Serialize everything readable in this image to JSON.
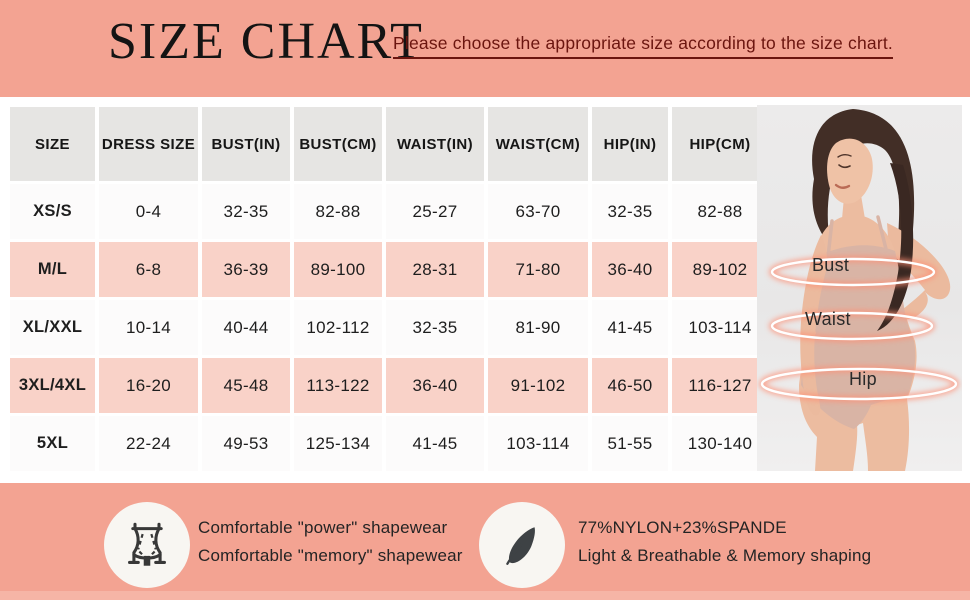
{
  "title": "SIZE CHART",
  "subtitle": "Please choose the appropriate size according to the size chart.",
  "table": {
    "headers": [
      "SIZE",
      "DRESS SIZE",
      "BUST(IN)",
      "BUST(CM)",
      "WAIST(IN)",
      "WAIST(CM)",
      "HIP(IN)",
      "HIP(CM)"
    ],
    "rows": [
      {
        "cells": [
          "XS/S",
          "0-4",
          "32-35",
          "82-88",
          "25-27",
          "63-70",
          "32-35",
          "82-88"
        ]
      },
      {
        "cells": [
          "M/L",
          "6-8",
          "36-39",
          "89-100",
          "28-31",
          "71-80",
          "36-40",
          "89-102"
        ]
      },
      {
        "cells": [
          "XL/XXL",
          "10-14",
          "40-44",
          "102-112",
          "32-35",
          "81-90",
          "41-45",
          "103-114"
        ]
      },
      {
        "cells": [
          "3XL/4XL",
          "16-20",
          "45-48",
          "113-122",
          "36-40",
          "91-102",
          "46-50",
          "116-127"
        ]
      },
      {
        "cells": [
          "5XL",
          "22-24",
          "49-53",
          "125-134",
          "41-45",
          "103-114",
          "51-55",
          "130-140"
        ]
      }
    ]
  },
  "figure": {
    "bust_label": "Bust",
    "waist_label": "Waist",
    "hip_label": "Hip"
  },
  "features": [
    {
      "icon": "shapewear-torso-icon",
      "line1": "Comfortable \"power\" shapewear",
      "line2": "Comfortable \"memory\" shapewear"
    },
    {
      "icon": "feather-icon",
      "line1": "77%NYLON+23%SPANDE",
      "line2": "Light & Breathable & Memory shaping"
    }
  ],
  "colors": {
    "background": "#F3A392",
    "row_pink": "#F9D2C8",
    "header_gray": "#E6E5E3",
    "subtitle_text": "#6B150F",
    "text": "#1E1E1E",
    "photo_bg": "#EAE9E9",
    "ring_glow": "#FF8F74",
    "bottom_strip": "#F6B5A6",
    "icon_circle_bg": "#F8F6F2",
    "icon_dark": "#383838"
  }
}
